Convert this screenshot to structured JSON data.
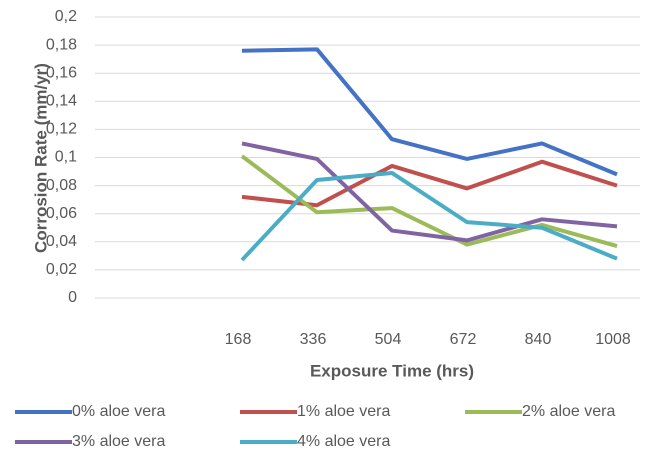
{
  "chart_data": {
    "type": "line",
    "x_label": "Exposure Time (hrs)",
    "y_label": "Corrosion Rate (mm/yr)",
    "categories": [
      null,
      "168",
      "336",
      "504",
      "672",
      "840",
      "1008"
    ],
    "series": [
      {
        "name": "0% aloe vera",
        "color": "#4472c4",
        "values": [
          null,
          0.176,
          0.177,
          0.113,
          0.099,
          0.11,
          0.088
        ]
      },
      {
        "name": "1% aloe vera",
        "color": "#c0504d",
        "values": [
          null,
          0.072,
          0.066,
          0.094,
          0.078,
          0.097,
          0.08
        ]
      },
      {
        "name": "2% aloe vera",
        "color": "#9bbb59",
        "values": [
          null,
          0.101,
          0.061,
          0.064,
          0.038,
          0.052,
          0.037
        ]
      },
      {
        "name": "3% aloe vera",
        "color": "#8064a2",
        "values": [
          null,
          0.11,
          0.099,
          0.048,
          0.041,
          0.056,
          0.051
        ]
      },
      {
        "name": "4% aloe vera",
        "color": "#4bacc6",
        "values": [
          null,
          0.027,
          0.084,
          0.089,
          0.054,
          0.05,
          0.028
        ]
      }
    ],
    "ylim": [
      0,
      0.2
    ],
    "yticks": [
      0,
      {
        "value": 0.02,
        "label": "0,02"
      },
      {
        "value": 0.04,
        "label": "0,04"
      },
      {
        "value": 0.06,
        "label": "0,06"
      },
      {
        "value": 0.08,
        "label": "0,08"
      },
      {
        "value": 0.1,
        "label": "0,1"
      },
      {
        "value": 0.12,
        "label": "0,12"
      },
      {
        "value": 0.14,
        "label": "0,14"
      },
      {
        "value": 0.16,
        "label": "0,16"
      },
      {
        "value": 0.18,
        "label": "0,18"
      },
      {
        "value": 0.2,
        "label": "0,2"
      }
    ],
    "grid": true,
    "legend": "bottom"
  }
}
